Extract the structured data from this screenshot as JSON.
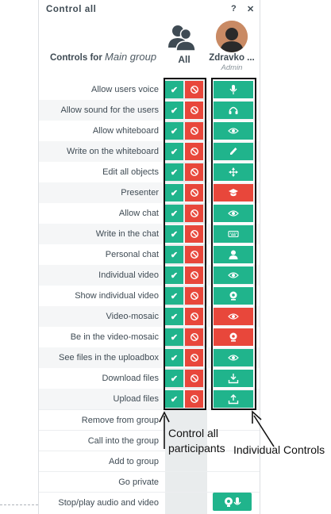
{
  "header": {
    "title": "Control all",
    "help_label": "?",
    "close_label": "✕",
    "controls_for_prefix": "Controls for",
    "group_name": "Main group"
  },
  "columns": {
    "all_label": "All",
    "user_name": "Zdravko ...",
    "user_role": "Admin"
  },
  "rows": [
    {
      "label": "Allow users voice",
      "icon": "microphone-icon",
      "state": "on"
    },
    {
      "label": "Allow sound for the users",
      "icon": "headphones-icon",
      "state": "on"
    },
    {
      "label": "Allow whiteboard",
      "icon": "eye-icon",
      "state": "on"
    },
    {
      "label": "Write on the whiteboard",
      "icon": "pen-icon",
      "state": "on"
    },
    {
      "label": "Edit all objects",
      "icon": "move-arrows-icon",
      "state": "on"
    },
    {
      "label": "Presenter",
      "icon": "graduation-cap-icon",
      "state": "off"
    },
    {
      "label": "Allow chat",
      "icon": "eye-icon",
      "state": "on"
    },
    {
      "label": "Write in the chat",
      "icon": "keyboard-icon",
      "state": "on"
    },
    {
      "label": "Personal chat",
      "icon": "user-icon",
      "state": "on"
    },
    {
      "label": "Individual video",
      "icon": "eye-icon",
      "state": "on"
    },
    {
      "label": "Show individual video",
      "icon": "webcam-icon",
      "state": "on"
    },
    {
      "label": "Video-mosaic",
      "icon": "eye-icon",
      "state": "off"
    },
    {
      "label": "Be in the video-mosaic",
      "icon": "webcam-icon",
      "state": "off"
    },
    {
      "label": "See files in the uploadbox",
      "icon": "eye-icon",
      "state": "on"
    },
    {
      "label": "Download files",
      "icon": "download-icon",
      "state": "on"
    },
    {
      "label": "Upload files",
      "icon": "upload-icon",
      "state": "on"
    }
  ],
  "actions": [
    {
      "label": "Remove from group"
    },
    {
      "label": "Call into the group"
    },
    {
      "label": "Add to group"
    },
    {
      "label": "Go private"
    },
    {
      "label": "Stop/play audio and video"
    }
  ],
  "annotations": {
    "control_all": "Control all participants",
    "individual": "Individual Controls"
  },
  "colors": {
    "allow": "#20b48c",
    "deny": "#e8473b",
    "text": "#3f4b54"
  }
}
